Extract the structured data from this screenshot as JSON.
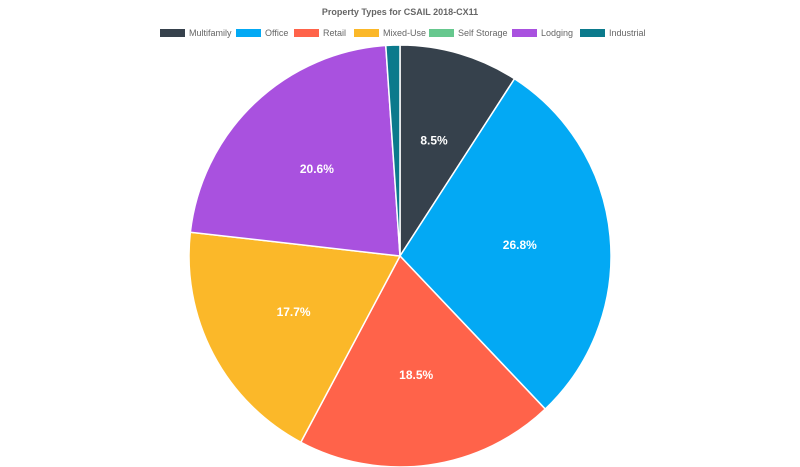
{
  "chart_data": {
    "type": "pie",
    "title": "Property Types for CSAIL 2018-CX11",
    "legend_position": "top",
    "slices": [
      {
        "name": "Multifamily",
        "value": 8.5,
        "label": "8.5%",
        "color": "#36414c"
      },
      {
        "name": "Office",
        "value": 26.8,
        "label": "26.8%",
        "color": "#03a9f4"
      },
      {
        "name": "Retail",
        "value": 18.5,
        "label": "18.5%",
        "color": "#ff634a"
      },
      {
        "name": "Mixed-Use",
        "value": 17.7,
        "label": "17.7%",
        "color": "#fbb829"
      },
      {
        "name": "Self Storage",
        "value": 0.0,
        "label": "",
        "color": "#66c88e"
      },
      {
        "name": "Lodging",
        "value": 20.6,
        "label": "20.6%",
        "color": "#a951df"
      },
      {
        "name": "Industrial",
        "value": 1.0,
        "label": "",
        "color": "#0b7a8c"
      }
    ]
  }
}
